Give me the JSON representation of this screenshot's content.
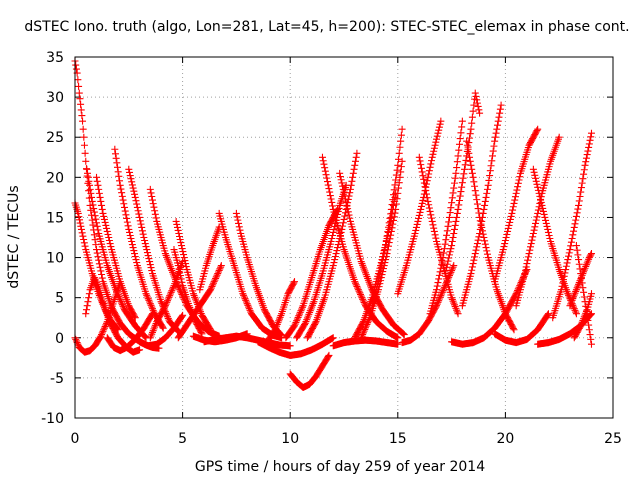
{
  "chart_data": {
    "type": "scatter",
    "title": "dSTEC Iono. truth (algo, Lon=281, Lat=45, h=200): STEC-STEC_elemax in phase cont.",
    "xlabel": "GPS time / hours of day 259 of year 2014",
    "ylabel": "dSTEC  / TECUs",
    "xlim": [
      0,
      25
    ],
    "ylim": [
      -10,
      35
    ],
    "xticks": [
      0,
      5,
      10,
      15,
      20,
      25
    ],
    "yticks": [
      -10,
      -5,
      0,
      5,
      10,
      15,
      20,
      25,
      30,
      35
    ],
    "xtick_labels": [
      "0",
      "5",
      "10",
      "15",
      "20",
      "25"
    ],
    "ytick_labels": [
      "-10",
      "-5",
      "0",
      "5",
      "10",
      "15",
      "20",
      "25",
      "30",
      "35"
    ],
    "grid": true,
    "legend": "none",
    "marker": "+",
    "color": "#ff0000",
    "series": [
      {
        "x": [
          0.0,
          0.1,
          0.2,
          0.35,
          0.5,
          0.7,
          1.0,
          1.3,
          1.7,
          2.1,
          2.5,
          2.9,
          3.3,
          3.6,
          3.9
        ],
        "values": [
          34.5,
          33.0,
          30.5,
          27.0,
          22.0,
          16.5,
          11.0,
          7.0,
          3.8,
          1.8,
          0.5,
          -0.3,
          -0.9,
          -1.2,
          -1.3
        ]
      },
      {
        "x": [
          0.0,
          0.15,
          0.3,
          0.5,
          0.8,
          1.1,
          1.4,
          1.7,
          2.0
        ],
        "values": [
          16.8,
          15.5,
          13.5,
          11.0,
          8.0,
          5.5,
          3.5,
          2.0,
          1.0
        ]
      },
      {
        "x": [
          0.0,
          0.2,
          0.45,
          0.7,
          0.95,
          1.2,
          1.5,
          1.8,
          2.1
        ],
        "values": [
          0.0,
          -1.2,
          -1.8,
          -1.6,
          -0.9,
          0.2,
          2.0,
          4.5,
          7.0
        ]
      },
      {
        "x": [
          0.5,
          0.7,
          0.9,
          1.1,
          1.35,
          1.6,
          2.0,
          2.4,
          2.7,
          3.0
        ],
        "values": [
          3.0,
          6.0,
          7.5,
          6.2,
          4.0,
          2.0,
          0.0,
          -1.2,
          -1.8,
          -1.5
        ]
      },
      {
        "x": [
          0.55,
          0.8,
          1.1,
          1.5,
          1.9,
          2.3,
          2.8,
          3.3
        ],
        "values": [
          21.0,
          17.0,
          13.0,
          9.0,
          6.0,
          3.5,
          1.5,
          0.0
        ]
      },
      {
        "x": [
          1.0,
          1.3,
          1.7,
          2.1,
          2.5,
          2.8
        ],
        "values": [
          20.0,
          15.5,
          11.0,
          7.0,
          4.0,
          2.5
        ]
      },
      {
        "x": [
          1.5,
          1.8,
          2.1,
          2.4,
          2.8,
          3.2,
          3.6
        ],
        "values": [
          0.0,
          -1.2,
          -1.6,
          -1.2,
          -0.2,
          1.2,
          3.0
        ]
      },
      {
        "x": [
          1.85,
          2.1,
          2.5,
          2.9,
          3.3,
          3.7,
          4.1
        ],
        "values": [
          23.5,
          19.0,
          13.5,
          9.0,
          5.5,
          3.0,
          1.2
        ]
      },
      {
        "x": [
          2.5,
          2.8,
          3.2,
          3.6,
          4.0,
          4.4,
          4.8
        ],
        "values": [
          21.0,
          17.5,
          12.5,
          8.0,
          4.5,
          2.0,
          0.8
        ]
      },
      {
        "x": [
          3.5,
          3.8,
          4.2,
          4.7,
          5.2,
          5.7,
          6.2,
          6.7
        ],
        "values": [
          18.5,
          14.5,
          10.5,
          7.0,
          4.0,
          2.0,
          0.8,
          0.2
        ]
      },
      {
        "x": [
          3.0,
          3.4,
          3.8,
          4.2,
          4.6,
          5.0
        ],
        "values": [
          -0.5,
          -1.0,
          -0.8,
          0.0,
          1.2,
          2.8
        ]
      },
      {
        "x": [
          3.5,
          3.8,
          4.2,
          4.6,
          5.0
        ],
        "values": [
          0.0,
          2.0,
          4.0,
          6.5,
          9.5
        ]
      },
      {
        "x": [
          4.7,
          4.95,
          5.2,
          5.5,
          5.9,
          6.3
        ],
        "values": [
          14.5,
          11.5,
          8.5,
          5.5,
          2.8,
          1.0
        ]
      },
      {
        "x": [
          4.6,
          4.8,
          5.0,
          5.3,
          5.6,
          5.9
        ],
        "values": [
          11.0,
          9.0,
          6.5,
          4.0,
          2.0,
          0.5
        ]
      },
      {
        "x": [
          4.8,
          5.3,
          5.8,
          6.3,
          6.8
        ],
        "values": [
          0.0,
          2.0,
          4.0,
          6.0,
          9.0
        ]
      },
      {
        "x": [
          5.8,
          6.1,
          6.4,
          6.7
        ],
        "values": [
          6.0,
          9.0,
          11.5,
          13.8
        ]
      },
      {
        "x": [
          5.5,
          6.0,
          6.5,
          7.0,
          7.5,
          8.0
        ],
        "values": [
          0.2,
          -0.3,
          -0.5,
          -0.3,
          0.0,
          0.5
        ]
      },
      {
        "x": [
          6.7,
          7.0,
          7.4,
          7.8,
          8.2,
          8.7,
          9.2,
          9.6
        ],
        "values": [
          15.5,
          12.5,
          9.0,
          5.5,
          3.0,
          1.2,
          0.3,
          0.0
        ]
      },
      {
        "x": [
          7.5,
          7.7,
          8.0,
          8.4,
          8.8,
          9.2,
          9.6
        ],
        "values": [
          15.5,
          13.0,
          10.0,
          6.5,
          3.5,
          1.5,
          0.3
        ]
      },
      {
        "x": [
          6.0,
          6.5,
          7.0,
          7.5,
          8.0,
          8.5,
          9.0,
          9.5,
          10.0
        ],
        "values": [
          -0.5,
          -0.2,
          0.0,
          0.2,
          0.0,
          -0.3,
          -0.6,
          -0.9,
          -1.0
        ]
      },
      {
        "x": [
          9.0,
          9.3,
          9.6,
          9.9,
          10.2
        ],
        "values": [
          -0.2,
          1.0,
          3.0,
          5.5,
          7.0
        ]
      },
      {
        "x": [
          8.5,
          9.0,
          9.5,
          10.0,
          10.5,
          11.0,
          11.5,
          12.0
        ],
        "values": [
          -0.5,
          -1.2,
          -1.8,
          -2.2,
          -2.0,
          -1.5,
          -0.8,
          0.0
        ]
      },
      {
        "x": [
          10.0,
          10.3,
          10.6,
          10.9,
          11.2,
          11.5,
          11.8
        ],
        "values": [
          -4.5,
          -5.5,
          -6.2,
          -5.8,
          -4.8,
          -3.5,
          -2.2
        ]
      },
      {
        "x": [
          12.0,
          12.5,
          13.0,
          13.5,
          14.0,
          14.5,
          15.0
        ],
        "values": [
          -1.0,
          -0.6,
          -0.4,
          -0.3,
          -0.4,
          -0.6,
          -0.8
        ]
      },
      {
        "x": [
          9.8,
          10.2,
          10.6,
          11.0,
          11.4,
          11.8,
          12.2
        ],
        "values": [
          0.0,
          1.5,
          4.0,
          7.5,
          11.0,
          14.0,
          16.0
        ]
      },
      {
        "x": [
          10.3,
          10.7,
          11.1,
          11.5,
          11.9,
          12.3,
          12.6
        ],
        "values": [
          0.0,
          1.8,
          4.5,
          8.0,
          12.0,
          16.5,
          19.0
        ]
      },
      {
        "x": [
          10.8,
          11.2,
          11.6,
          12.0,
          12.4,
          12.8,
          13.1
        ],
        "values": [
          0.0,
          2.0,
          5.0,
          9.0,
          13.5,
          18.5,
          23.0
        ]
      },
      {
        "x": [
          11.5,
          12.0,
          12.5,
          13.0,
          13.5,
          14.0,
          14.5,
          15.0
        ],
        "values": [
          22.5,
          16.0,
          11.0,
          7.0,
          4.0,
          2.0,
          0.8,
          0.0
        ]
      },
      {
        "x": [
          12.3,
          12.8,
          13.3,
          13.8,
          14.3,
          14.8,
          15.3
        ],
        "values": [
          20.5,
          14.5,
          9.5,
          6.0,
          3.5,
          1.6,
          0.4
        ]
      },
      {
        "x": [
          13.0,
          13.4,
          13.8,
          14.2,
          14.6,
          14.9
        ],
        "values": [
          0.0,
          2.0,
          5.0,
          9.0,
          13.5,
          18.0
        ]
      },
      {
        "x": [
          13.3,
          13.7,
          14.1,
          14.5,
          14.9,
          15.2
        ],
        "values": [
          0.0,
          2.5,
          6.0,
          10.5,
          16.0,
          22.0
        ]
      },
      {
        "x": [
          13.8,
          14.1,
          14.4,
          14.7,
          15.0,
          15.2
        ],
        "values": [
          4.0,
          7.0,
          11.0,
          16.0,
          21.5,
          26.0
        ]
      },
      {
        "x": [
          15.0,
          15.4,
          15.8,
          16.2,
          16.6,
          17.0
        ],
        "values": [
          5.5,
          9.0,
          13.0,
          17.5,
          22.5,
          27.0
        ]
      },
      {
        "x": [
          15.2,
          15.6,
          16.0,
          16.4,
          16.8,
          17.2,
          17.6
        ],
        "values": [
          -0.6,
          -0.3,
          0.5,
          2.0,
          4.0,
          6.5,
          9.0
        ]
      },
      {
        "x": [
          16.0,
          16.4,
          16.8,
          17.2,
          17.5,
          17.8
        ],
        "values": [
          22.5,
          17.0,
          12.0,
          8.0,
          5.0,
          3.0
        ]
      },
      {
        "x": [
          16.5,
          16.8,
          17.1,
          17.4,
          17.7,
          18.0
        ],
        "values": [
          3.0,
          6.0,
          10.0,
          15.0,
          20.5,
          27.0
        ]
      },
      {
        "x": [
          17.2,
          17.5,
          17.8,
          18.1,
          18.4,
          18.6,
          18.8
        ],
        "values": [
          8.0,
          11.5,
          16.0,
          21.0,
          26.0,
          30.5,
          28.0
        ]
      },
      {
        "x": [
          18.2,
          18.5,
          18.8,
          19.2,
          19.6,
          20.0,
          20.4
        ],
        "values": [
          24.5,
          20.0,
          15.0,
          10.0,
          6.0,
          3.0,
          1.0
        ]
      },
      {
        "x": [
          17.5,
          18.0,
          18.5,
          19.0,
          19.5,
          20.0,
          20.5,
          21.0
        ],
        "values": [
          -0.5,
          -0.8,
          -0.6,
          0.0,
          1.2,
          3.0,
          5.5,
          8.5
        ]
      },
      {
        "x": [
          18.0,
          18.4,
          18.8,
          19.2,
          19.5,
          19.8
        ],
        "values": [
          4.0,
          8.0,
          13.0,
          19.0,
          24.5,
          29.0
        ]
      },
      {
        "x": [
          19.5,
          19.9,
          20.3,
          20.7,
          21.1,
          21.5
        ],
        "values": [
          7.0,
          11.0,
          15.5,
          20.5,
          24.0,
          26.0
        ]
      },
      {
        "x": [
          19.5,
          20.0,
          20.5,
          21.0,
          21.5,
          22.0
        ],
        "values": [
          0.5,
          -0.3,
          -0.6,
          -0.2,
          1.0,
          3.0
        ]
      },
      {
        "x": [
          20.5,
          20.9,
          21.3,
          21.7,
          22.1,
          22.5
        ],
        "values": [
          4.0,
          8.0,
          13.0,
          18.0,
          22.0,
          25.0
        ]
      },
      {
        "x": [
          21.3,
          21.7,
          22.1,
          22.5,
          22.9,
          23.3
        ],
        "values": [
          21.0,
          16.5,
          12.0,
          8.5,
          5.5,
          3.0
        ]
      },
      {
        "x": [
          21.5,
          22.0,
          22.5,
          23.0,
          23.5,
          24.0
        ],
        "values": [
          -0.8,
          -0.6,
          -0.2,
          0.5,
          1.5,
          3.0
        ]
      },
      {
        "x": [
          22.2,
          22.6,
          23.0,
          23.4,
          23.7,
          24.0
        ],
        "values": [
          2.5,
          6.0,
          11.0,
          16.5,
          21.5,
          25.5
        ]
      },
      {
        "x": [
          23.3,
          23.5,
          23.7,
          23.9,
          24.0
        ],
        "values": [
          11.5,
          8.0,
          4.5,
          1.0,
          -0.8
        ]
      },
      {
        "x": [
          23.0,
          23.3,
          23.6,
          23.9,
          24.0
        ],
        "values": [
          4.0,
          6.0,
          8.0,
          10.0,
          10.5
        ]
      },
      {
        "x": [
          23.2,
          23.5,
          23.8,
          24.0
        ],
        "values": [
          0.0,
          1.5,
          3.5,
          5.5
        ]
      }
    ]
  }
}
